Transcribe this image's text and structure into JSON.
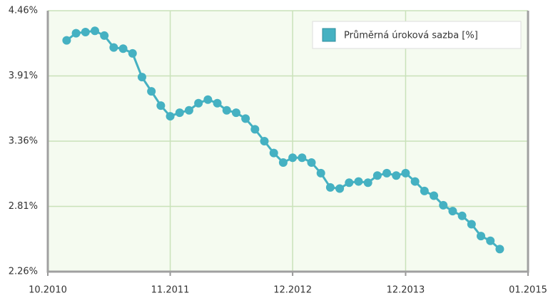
{
  "chart_data": {
    "type": "line",
    "x": [
      "2010-12",
      "2011-01",
      "2011-02",
      "2011-03",
      "2011-04",
      "2011-05",
      "2011-06",
      "2011-07",
      "2011-08",
      "2011-09",
      "2011-10",
      "2011-11",
      "2011-12",
      "2012-01",
      "2012-02",
      "2012-03",
      "2012-04",
      "2012-05",
      "2012-06",
      "2012-07",
      "2012-08",
      "2012-09",
      "2012-10",
      "2012-11",
      "2012-12",
      "2013-01",
      "2013-02",
      "2013-03",
      "2013-04",
      "2013-05",
      "2013-06",
      "2013-07",
      "2013-08",
      "2013-09",
      "2013-10",
      "2013-11",
      "2013-12",
      "2014-01",
      "2014-02",
      "2014-03",
      "2014-04",
      "2014-05",
      "2014-06",
      "2014-07",
      "2014-08",
      "2014-09",
      "2014-10"
    ],
    "series": [
      {
        "name": "Průměrná úroková sazba [%]",
        "color": "#45b1c2",
        "values": [
          4.21,
          4.27,
          4.28,
          4.29,
          4.25,
          4.15,
          4.14,
          4.1,
          3.9,
          3.78,
          3.66,
          3.57,
          3.6,
          3.62,
          3.68,
          3.71,
          3.68,
          3.62,
          3.6,
          3.55,
          3.46,
          3.36,
          3.26,
          3.18,
          3.22,
          3.22,
          3.18,
          3.09,
          2.97,
          2.96,
          3.01,
          3.02,
          3.01,
          3.07,
          3.09,
          3.07,
          3.09,
          3.02,
          2.94,
          2.9,
          2.82,
          2.77,
          2.73,
          2.66,
          2.56,
          2.52,
          2.45
        ]
      }
    ],
    "xlim": [
      "2010-10",
      "2015-01"
    ],
    "xticks": [
      {
        "value": "2010-10",
        "label": "10.2010"
      },
      {
        "value": "2011-11",
        "label": "11.2011"
      },
      {
        "value": "2012-12",
        "label": "12.2012"
      },
      {
        "value": "2013-12",
        "label": "12.2013"
      },
      {
        "value": "2015-01",
        "label": "01.2015"
      }
    ],
    "ylim": [
      2.26,
      4.46
    ],
    "yticks": [
      {
        "value": 2.26,
        "label": "2.26%"
      },
      {
        "value": 2.81,
        "label": "2.81%"
      },
      {
        "value": 3.36,
        "label": "3.36%"
      },
      {
        "value": 3.91,
        "label": "3.91%"
      },
      {
        "value": 4.46,
        "label": "4.46%"
      }
    ],
    "grid": true,
    "legend": "top-right"
  }
}
